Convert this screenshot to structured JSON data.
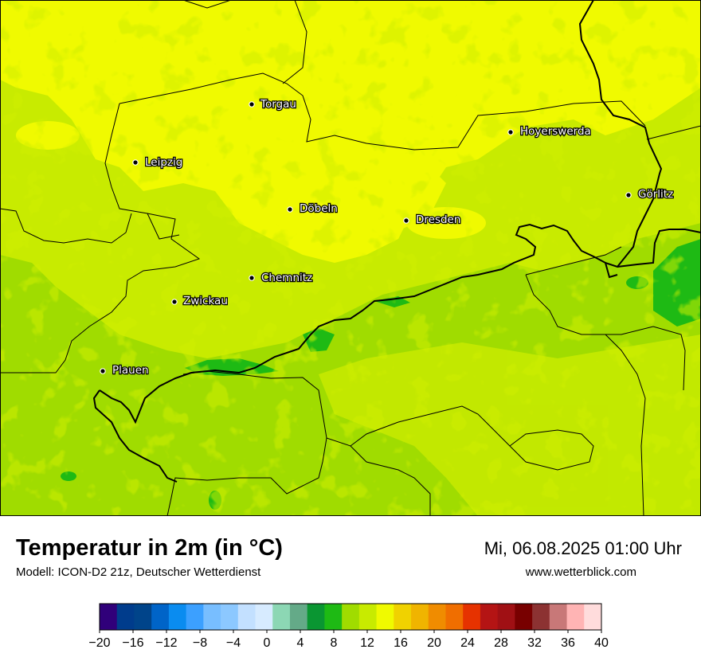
{
  "title": "Temperatur in 2m (in °C)",
  "subtitle": "Modell: ICON-D2 21z, Deutscher Wetterdienst",
  "datetime": "Mi, 06.08.2025 01:00 Uhr",
  "website": "www.wetterblick.com",
  "cities": [
    {
      "name": "Torgau"
    },
    {
      "name": "Leipzig"
    },
    {
      "name": "Hoyerswerda"
    },
    {
      "name": "Döbeln"
    },
    {
      "name": "Dresden"
    },
    {
      "name": "Görlitz"
    },
    {
      "name": "Chemnitz"
    },
    {
      "name": "Zwickau"
    },
    {
      "name": "Plauen"
    }
  ],
  "legend": {
    "tick_labels": [
      "−20",
      "−16",
      "−12",
      "−8",
      "−4",
      "0",
      "4",
      "8",
      "12",
      "16",
      "20",
      "24",
      "28",
      "32",
      "36",
      "40"
    ],
    "min": -20,
    "max": 40,
    "step": 2,
    "colors": [
      "#30007a",
      "#003c8c",
      "#00448a",
      "#0064c8",
      "#0a8cf0",
      "#3ca0ff",
      "#78beff",
      "#8cc8ff",
      "#c3e0ff",
      "#d7ebff",
      "#8cd7b4",
      "#64aa88",
      "#0a9632",
      "#1eba14",
      "#a0dc00",
      "#c8eb00",
      "#f0fa00",
      "#f0d200",
      "#f0b400",
      "#f08c00",
      "#f06e00",
      "#e63200",
      "#b41414",
      "#a01014",
      "#780000",
      "#8c3232",
      "#c87878",
      "#ffb4b4",
      "#ffdcdc"
    ]
  },
  "map_colors": {
    "light_green": "#c8eb00",
    "yellow": "#f0fa00",
    "green": "#a0dc00",
    "dark_green": "#1eba14"
  }
}
